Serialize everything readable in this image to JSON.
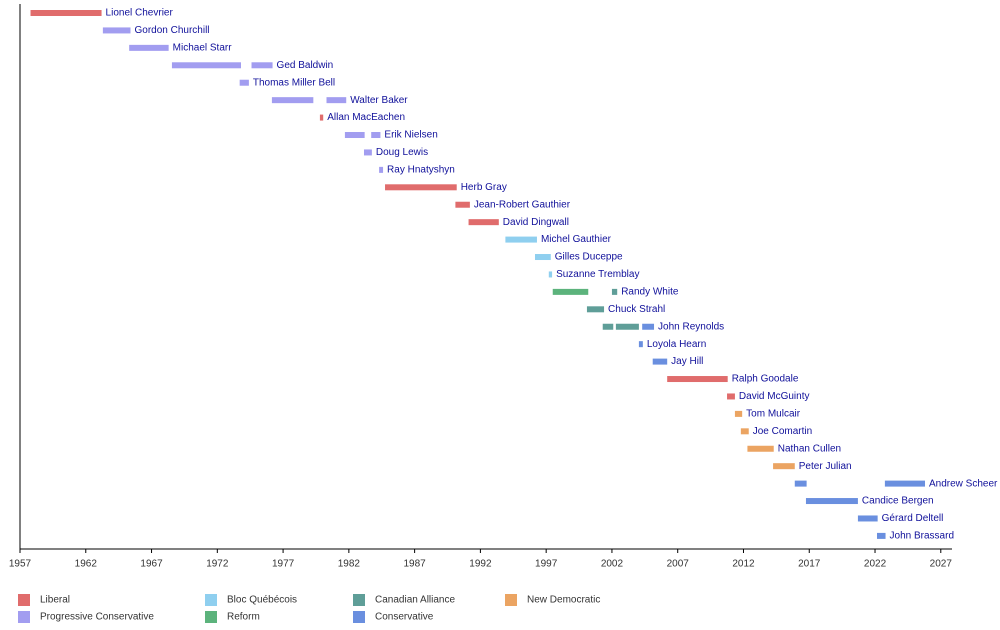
{
  "chart_data": {
    "type": "timeline",
    "xlim": [
      1957,
      2027.7
    ],
    "xticks": [
      1957,
      1962,
      1967,
      1972,
      1977,
      1982,
      1987,
      1992,
      1997,
      2002,
      2007,
      2012,
      2017,
      2022,
      2027
    ],
    "series": [
      {
        "name": "Liberal",
        "color": "#e06c6c"
      },
      {
        "name": "Progressive Conservative",
        "color": "#a29df0"
      },
      {
        "name": "Bloc Québécois",
        "color": "#8fcfef"
      },
      {
        "name": "Reform",
        "color": "#5cb37c"
      },
      {
        "name": "Canadian Alliance",
        "color": "#5f9e98"
      },
      {
        "name": "Conservative",
        "color": "#6a8fdf"
      },
      {
        "name": "New Democratic",
        "color": "#eba462"
      }
    ],
    "rows": [
      {
        "name": "Lionel Chevrier",
        "segments": [
          {
            "party": "Liberal",
            "start": 1957.8,
            "end": 1963.2
          }
        ]
      },
      {
        "name": "Gordon Churchill",
        "segments": [
          {
            "party": "Progressive Conservative",
            "start": 1963.3,
            "end": 1965.4
          }
        ]
      },
      {
        "name": "Michael Starr",
        "segments": [
          {
            "party": "Progressive Conservative",
            "start": 1965.3,
            "end": 1968.3
          }
        ]
      },
      {
        "name": "Ged Baldwin",
        "segments": [
          {
            "party": "Progressive Conservative",
            "start": 1968.55,
            "end": 1973.8
          },
          {
            "party": "Progressive Conservative",
            "start": 1974.6,
            "end": 1976.2
          }
        ]
      },
      {
        "name": "Thomas Miller Bell",
        "segments": [
          {
            "party": "Progressive Conservative",
            "start": 1973.7,
            "end": 1974.4
          }
        ]
      },
      {
        "name": "Walter Baker",
        "segments": [
          {
            "party": "Progressive Conservative",
            "start": 1976.15,
            "end": 1979.3
          },
          {
            "party": "Progressive Conservative",
            "start": 1980.3,
            "end": 1981.8
          }
        ]
      },
      {
        "name": "Allan MacEachen",
        "segments": [
          {
            "party": "Liberal",
            "start": 1979.8,
            "end": 1980.05
          }
        ]
      },
      {
        "name": "Erik Nielsen",
        "segments": [
          {
            "party": "Progressive Conservative",
            "start": 1981.7,
            "end": 1983.2
          },
          {
            "party": "Progressive Conservative",
            "start": 1983.7,
            "end": 1984.4
          }
        ]
      },
      {
        "name": "Doug Lewis",
        "segments": [
          {
            "party": "Progressive Conservative",
            "start": 1983.15,
            "end": 1983.75
          }
        ]
      },
      {
        "name": "Ray Hnatyshyn",
        "segments": [
          {
            "party": "Progressive Conservative",
            "start": 1984.3,
            "end": 1984.6
          }
        ]
      },
      {
        "name": "Herb Gray",
        "segments": [
          {
            "party": "Liberal",
            "start": 1984.75,
            "end": 1990.2
          }
        ]
      },
      {
        "name": "Jean-Robert Gauthier",
        "segments": [
          {
            "party": "Liberal",
            "start": 1990.1,
            "end": 1991.2
          }
        ]
      },
      {
        "name": "David Dingwall",
        "segments": [
          {
            "party": "Liberal",
            "start": 1991.1,
            "end": 1993.4
          }
        ]
      },
      {
        "name": "Michel Gauthier",
        "segments": [
          {
            "party": "Bloc Québécois",
            "start": 1993.9,
            "end": 1996.3
          }
        ]
      },
      {
        "name": "Gilles Duceppe",
        "segments": [
          {
            "party": "Bloc Québécois",
            "start": 1996.15,
            "end": 1997.35
          }
        ]
      },
      {
        "name": "Suzanne Tremblay",
        "segments": [
          {
            "party": "Bloc Québécois",
            "start": 1997.2,
            "end": 1997.45
          }
        ]
      },
      {
        "name": "Randy White",
        "segments": [
          {
            "party": "Reform",
            "start": 1997.5,
            "end": 2000.2
          },
          {
            "party": "Canadian Alliance",
            "start": 2002.0,
            "end": 2002.4
          }
        ]
      },
      {
        "name": "Chuck Strahl",
        "segments": [
          {
            "party": "Canadian Alliance",
            "start": 2000.1,
            "end": 2001.4
          }
        ]
      },
      {
        "name": "John Reynolds",
        "segments": [
          {
            "party": "Canadian Alliance",
            "start": 2001.3,
            "end": 2002.1
          },
          {
            "party": "Canadian Alliance",
            "start": 2002.3,
            "end": 2004.05
          },
          {
            "party": "Conservative",
            "start": 2004.3,
            "end": 2005.2
          }
        ]
      },
      {
        "name": "Loyola Hearn",
        "segments": [
          {
            "party": "Conservative",
            "start": 2004.05,
            "end": 2004.35
          }
        ]
      },
      {
        "name": "Jay Hill",
        "segments": [
          {
            "party": "Conservative",
            "start": 2005.1,
            "end": 2006.2
          }
        ]
      },
      {
        "name": "Ralph Goodale",
        "segments": [
          {
            "party": "Liberal",
            "start": 2006.2,
            "end": 2010.8
          }
        ]
      },
      {
        "name": "David McGuinty",
        "segments": [
          {
            "party": "Liberal",
            "start": 2010.75,
            "end": 2011.35
          }
        ]
      },
      {
        "name": "Tom Mulcair",
        "segments": [
          {
            "party": "New Democratic",
            "start": 2011.35,
            "end": 2011.9
          }
        ]
      },
      {
        "name": "Joe Comartin",
        "segments": [
          {
            "party": "New Democratic",
            "start": 2011.8,
            "end": 2012.4
          }
        ]
      },
      {
        "name": "Nathan Cullen",
        "segments": [
          {
            "party": "New Democratic",
            "start": 2012.3,
            "end": 2014.3
          }
        ]
      },
      {
        "name": "Peter Julian",
        "segments": [
          {
            "party": "New Democratic",
            "start": 2014.25,
            "end": 2015.9
          }
        ]
      },
      {
        "name": "Andrew Scheer",
        "segments": [
          {
            "party": "Conservative",
            "start": 2015.9,
            "end": 2016.8
          },
          {
            "party": "Conservative",
            "start": 2022.75,
            "end": 2025.8
          }
        ]
      },
      {
        "name": "Candice Bergen",
        "segments": [
          {
            "party": "Conservative",
            "start": 2016.75,
            "end": 2020.7
          }
        ]
      },
      {
        "name": "Gérard Deltell",
        "segments": [
          {
            "party": "Conservative",
            "start": 2020.7,
            "end": 2022.2
          }
        ]
      },
      {
        "name": "John Brassard",
        "segments": [
          {
            "party": "Conservative",
            "start": 2022.15,
            "end": 2022.8
          }
        ]
      }
    ]
  }
}
